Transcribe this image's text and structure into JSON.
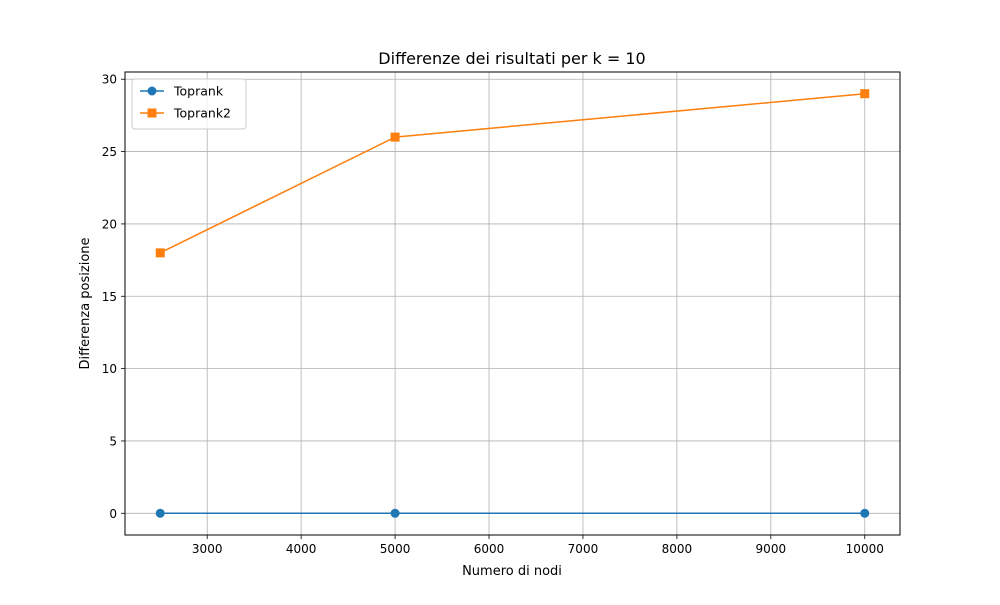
{
  "chart_data": {
    "type": "line",
    "title": "Differenze dei risultati per k = 10",
    "xlabel": "Numero di nodi",
    "ylabel": "Differenza posizione",
    "x": [
      2500,
      5000,
      10000
    ],
    "xlim": [
      2125,
      10375
    ],
    "ylim": [
      -1.5,
      30.5
    ],
    "xticks": [
      3000,
      4000,
      5000,
      6000,
      7000,
      8000,
      9000,
      10000
    ],
    "yticks": [
      0,
      5,
      10,
      15,
      20,
      25,
      30
    ],
    "grid": true,
    "legend_position": "top-left",
    "series": [
      {
        "name": "Toprank",
        "values": [
          0,
          0,
          0
        ],
        "color": "#1f77b4",
        "marker": "circle"
      },
      {
        "name": "Toprank2",
        "values": [
          18,
          26,
          29
        ],
        "color": "#ff7f0e",
        "marker": "square"
      }
    ]
  }
}
